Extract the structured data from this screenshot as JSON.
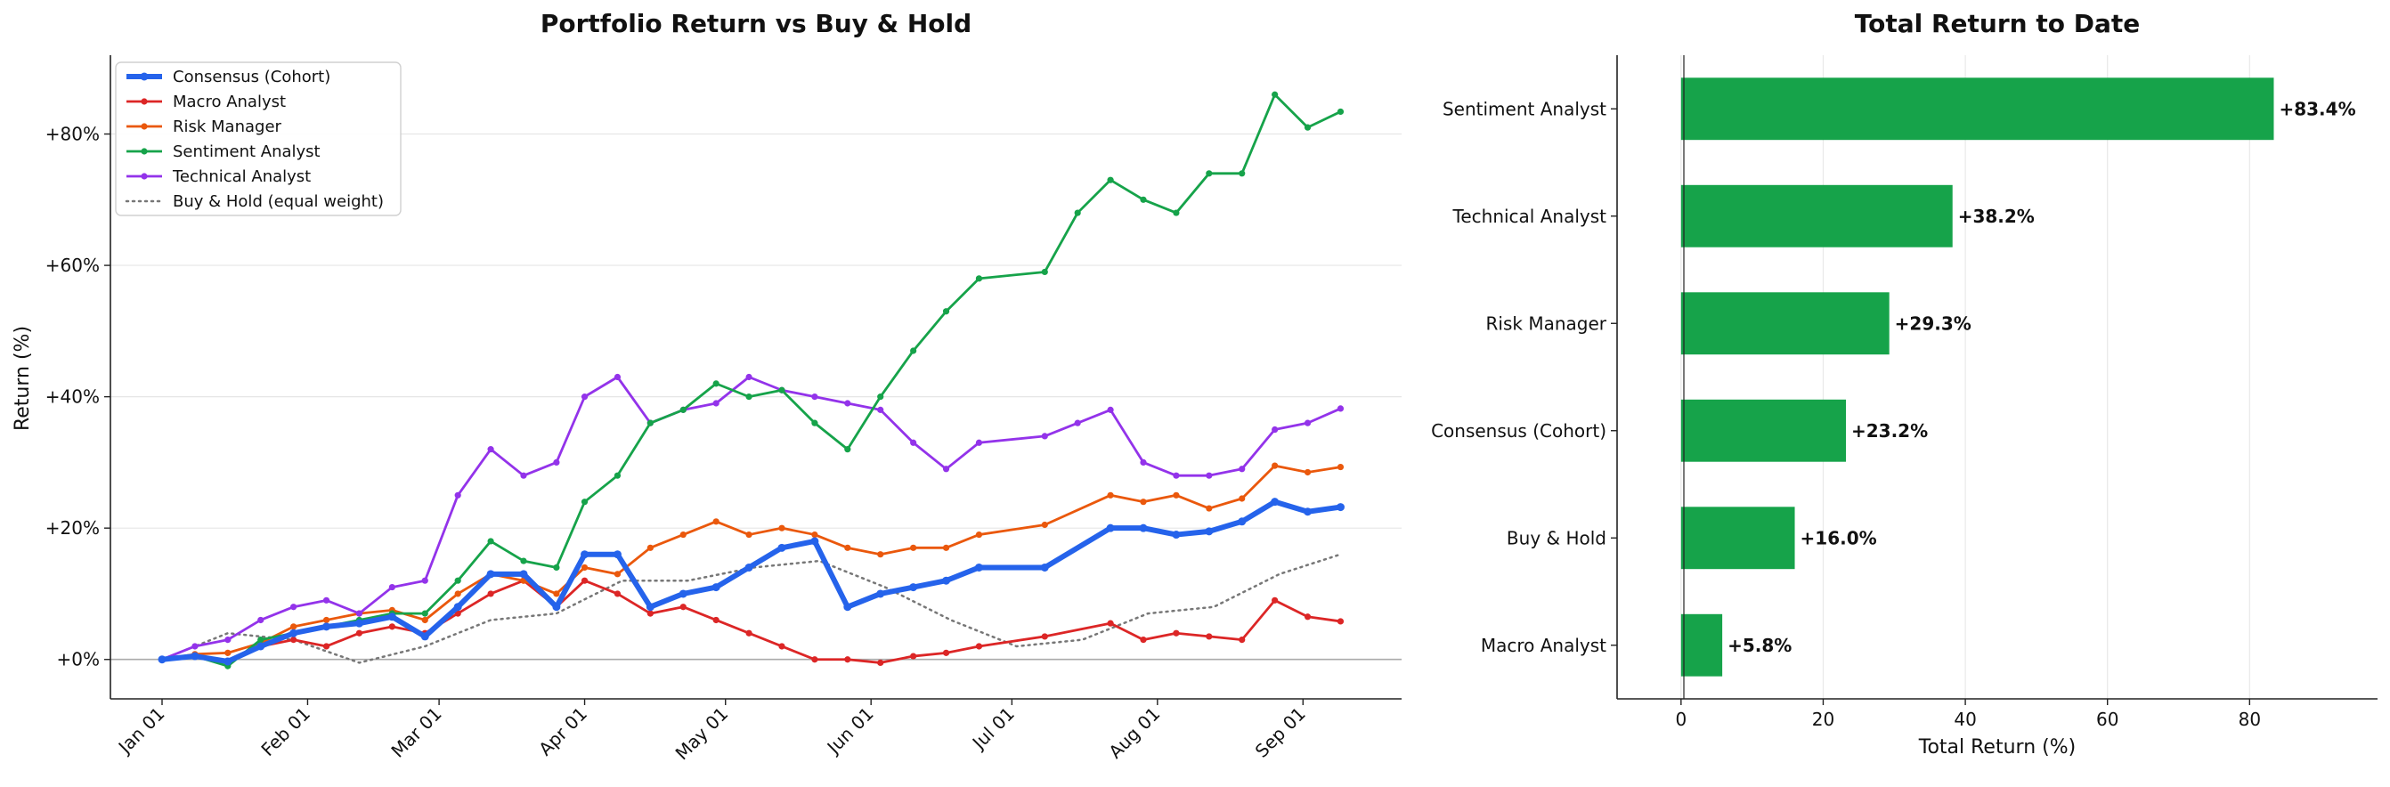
{
  "chart_data": [
    {
      "type": "line",
      "title": "Portfolio Return vs Buy & Hold",
      "xlabel": "",
      "ylabel": "Return (%)",
      "x_tick_labels": [
        "Jan 01",
        "Feb 01",
        "Mar 01",
        "Apr 01",
        "May 01",
        "Jun 01",
        "Jul 01",
        "Aug 01",
        "Sep 01"
      ],
      "x_ticks": [
        "2025-01-01",
        "2025-02-01",
        "2025-03-01",
        "2025-04-01",
        "2025-05-01",
        "2025-06-01",
        "2025-07-01",
        "2025-08-01",
        "2025-09-01"
      ],
      "xlim": [
        "2024-12-21",
        "2025-09-22"
      ],
      "y_tick_labels": [
        "+0%",
        "+20%",
        "+40%",
        "+60%",
        "+80%"
      ],
      "y_ticks": [
        0,
        20,
        40,
        60,
        80
      ],
      "ylim": [
        -6,
        92
      ],
      "grid": "horizontal",
      "legend": "upper-left",
      "series": [
        {
          "name": "Consensus (Cohort)",
          "color": "#2563eb",
          "style": "solid-bold",
          "points": [
            [
              "2025-01-01",
              0
            ],
            [
              "2025-01-08",
              0.5
            ],
            [
              "2025-01-15",
              -0.3
            ],
            [
              "2025-01-22",
              2
            ],
            [
              "2025-01-29",
              4
            ],
            [
              "2025-02-05",
              5
            ],
            [
              "2025-02-12",
              5.5
            ],
            [
              "2025-02-19",
              6.5
            ],
            [
              "2025-02-26",
              3.5
            ],
            [
              "2025-03-05",
              8
            ],
            [
              "2025-03-12",
              13
            ],
            [
              "2025-03-19",
              13
            ],
            [
              "2025-03-26",
              8
            ],
            [
              "2025-04-01",
              16
            ],
            [
              "2025-04-08",
              16
            ],
            [
              "2025-04-15",
              8
            ],
            [
              "2025-04-22",
              10
            ],
            [
              "2025-04-29",
              11
            ],
            [
              "2025-05-06",
              14
            ],
            [
              "2025-05-13",
              17
            ],
            [
              "2025-05-20",
              18
            ],
            [
              "2025-05-27",
              8
            ],
            [
              "2025-06-03",
              10
            ],
            [
              "2025-06-10",
              11
            ],
            [
              "2025-06-17",
              12
            ],
            [
              "2025-06-24",
              14
            ],
            [
              "2025-07-08",
              14
            ],
            [
              "2025-07-22",
              20
            ],
            [
              "2025-07-29",
              20
            ],
            [
              "2025-08-05",
              19
            ],
            [
              "2025-08-12",
              19.5
            ],
            [
              "2025-08-19",
              21
            ],
            [
              "2025-08-26",
              24
            ],
            [
              "2025-09-02",
              22.5
            ],
            [
              "2025-09-09",
              23.2
            ]
          ]
        },
        {
          "name": "Macro Analyst",
          "color": "#dc2626",
          "style": "solid",
          "points": [
            [
              "2025-01-01",
              0
            ],
            [
              "2025-01-08",
              0.5
            ],
            [
              "2025-01-15",
              -0.5
            ],
            [
              "2025-01-22",
              2
            ],
            [
              "2025-01-29",
              3
            ],
            [
              "2025-02-05",
              2
            ],
            [
              "2025-02-12",
              4
            ],
            [
              "2025-02-19",
              5
            ],
            [
              "2025-02-26",
              4
            ],
            [
              "2025-03-05",
              7
            ],
            [
              "2025-03-12",
              10
            ],
            [
              "2025-03-19",
              12
            ],
            [
              "2025-03-26",
              8
            ],
            [
              "2025-04-01",
              12
            ],
            [
              "2025-04-08",
              10
            ],
            [
              "2025-04-15",
              7
            ],
            [
              "2025-04-22",
              8
            ],
            [
              "2025-04-29",
              6
            ],
            [
              "2025-05-06",
              4
            ],
            [
              "2025-05-13",
              2
            ],
            [
              "2025-05-20",
              0
            ],
            [
              "2025-05-27",
              0
            ],
            [
              "2025-06-03",
              -0.5
            ],
            [
              "2025-06-10",
              0.5
            ],
            [
              "2025-06-17",
              1
            ],
            [
              "2025-06-24",
              2
            ],
            [
              "2025-07-08",
              3.5
            ],
            [
              "2025-07-22",
              5.5
            ],
            [
              "2025-07-29",
              3
            ],
            [
              "2025-08-05",
              4
            ],
            [
              "2025-08-12",
              3.5
            ],
            [
              "2025-08-19",
              3
            ],
            [
              "2025-08-26",
              9
            ],
            [
              "2025-09-02",
              6.5
            ],
            [
              "2025-09-09",
              5.8
            ]
          ]
        },
        {
          "name": "Risk Manager",
          "color": "#ea580c",
          "style": "solid",
          "points": [
            [
              "2025-01-01",
              0
            ],
            [
              "2025-01-08",
              0.8
            ],
            [
              "2025-01-15",
              1
            ],
            [
              "2025-01-22",
              2.5
            ],
            [
              "2025-01-29",
              5
            ],
            [
              "2025-02-05",
              6
            ],
            [
              "2025-02-12",
              7
            ],
            [
              "2025-02-19",
              7.5
            ],
            [
              "2025-02-26",
              6
            ],
            [
              "2025-03-05",
              10
            ],
            [
              "2025-03-12",
              13
            ],
            [
              "2025-03-19",
              12
            ],
            [
              "2025-03-26",
              10
            ],
            [
              "2025-04-01",
              14
            ],
            [
              "2025-04-08",
              13
            ],
            [
              "2025-04-15",
              17
            ],
            [
              "2025-04-22",
              19
            ],
            [
              "2025-04-29",
              21
            ],
            [
              "2025-05-06",
              19
            ],
            [
              "2025-05-13",
              20
            ],
            [
              "2025-05-20",
              19
            ],
            [
              "2025-05-27",
              17
            ],
            [
              "2025-06-03",
              16
            ],
            [
              "2025-06-10",
              17
            ],
            [
              "2025-06-17",
              17
            ],
            [
              "2025-06-24",
              19
            ],
            [
              "2025-07-08",
              20.5
            ],
            [
              "2025-07-22",
              25
            ],
            [
              "2025-07-29",
              24
            ],
            [
              "2025-08-05",
              25
            ],
            [
              "2025-08-12",
              23
            ],
            [
              "2025-08-19",
              24.5
            ],
            [
              "2025-08-26",
              29.5
            ],
            [
              "2025-09-02",
              28.5
            ],
            [
              "2025-09-09",
              29.3
            ]
          ]
        },
        {
          "name": "Sentiment Analyst",
          "color": "#16a34a",
          "style": "solid",
          "points": [
            [
              "2025-01-01",
              0
            ],
            [
              "2025-01-08",
              0.5
            ],
            [
              "2025-01-15",
              -1
            ],
            [
              "2025-01-22",
              3
            ],
            [
              "2025-01-29",
              4
            ],
            [
              "2025-02-05",
              5
            ],
            [
              "2025-02-12",
              6
            ],
            [
              "2025-02-19",
              7
            ],
            [
              "2025-02-26",
              7
            ],
            [
              "2025-03-05",
              12
            ],
            [
              "2025-03-12",
              18
            ],
            [
              "2025-03-19",
              15
            ],
            [
              "2025-03-26",
              14
            ],
            [
              "2025-04-01",
              24
            ],
            [
              "2025-04-08",
              28
            ],
            [
              "2025-04-15",
              36
            ],
            [
              "2025-04-22",
              38
            ],
            [
              "2025-04-29",
              42
            ],
            [
              "2025-05-06",
              40
            ],
            [
              "2025-05-13",
              41
            ],
            [
              "2025-05-20",
              36
            ],
            [
              "2025-05-27",
              32
            ],
            [
              "2025-06-03",
              40
            ],
            [
              "2025-06-10",
              47
            ],
            [
              "2025-06-17",
              53
            ],
            [
              "2025-06-24",
              58
            ],
            [
              "2025-07-08",
              59
            ],
            [
              "2025-07-15",
              68
            ],
            [
              "2025-07-22",
              73
            ],
            [
              "2025-07-29",
              70
            ],
            [
              "2025-08-05",
              68
            ],
            [
              "2025-08-12",
              74
            ],
            [
              "2025-08-19",
              74
            ],
            [
              "2025-08-26",
              86
            ],
            [
              "2025-09-02",
              81
            ],
            [
              "2025-09-09",
              83.4
            ]
          ]
        },
        {
          "name": "Technical Analyst",
          "color": "#9333ea",
          "style": "solid",
          "points": [
            [
              "2025-01-01",
              0
            ],
            [
              "2025-01-08",
              2
            ],
            [
              "2025-01-15",
              3
            ],
            [
              "2025-01-22",
              6
            ],
            [
              "2025-01-29",
              8
            ],
            [
              "2025-02-05",
              9
            ],
            [
              "2025-02-12",
              7
            ],
            [
              "2025-02-19",
              11
            ],
            [
              "2025-02-26",
              12
            ],
            [
              "2025-03-05",
              25
            ],
            [
              "2025-03-12",
              32
            ],
            [
              "2025-03-19",
              28
            ],
            [
              "2025-03-26",
              30
            ],
            [
              "2025-04-01",
              40
            ],
            [
              "2025-04-08",
              43
            ],
            [
              "2025-04-15",
              36
            ],
            [
              "2025-04-22",
              38
            ],
            [
              "2025-04-29",
              39
            ],
            [
              "2025-05-06",
              43
            ],
            [
              "2025-05-13",
              41
            ],
            [
              "2025-05-20",
              40
            ],
            [
              "2025-05-27",
              39
            ],
            [
              "2025-06-03",
              38
            ],
            [
              "2025-06-10",
              33
            ],
            [
              "2025-06-17",
              29
            ],
            [
              "2025-06-24",
              33
            ],
            [
              "2025-07-08",
              34
            ],
            [
              "2025-07-15",
              36
            ],
            [
              "2025-07-22",
              38
            ],
            [
              "2025-07-29",
              30
            ],
            [
              "2025-08-05",
              28
            ],
            [
              "2025-08-12",
              28
            ],
            [
              "2025-08-19",
              29
            ],
            [
              "2025-08-26",
              35
            ],
            [
              "2025-09-02",
              36
            ],
            [
              "2025-09-09",
              38.2
            ]
          ]
        },
        {
          "name": "Buy & Hold (equal weight)",
          "color": "#777777",
          "style": "dotted",
          "points": [
            [
              "2025-01-01",
              0
            ],
            [
              "2025-01-15",
              4
            ],
            [
              "2025-01-29",
              3
            ],
            [
              "2025-02-12",
              -0.5
            ],
            [
              "2025-02-26",
              2
            ],
            [
              "2025-03-12",
              6
            ],
            [
              "2025-03-26",
              7
            ],
            [
              "2025-04-09",
              12
            ],
            [
              "2025-04-23",
              12
            ],
            [
              "2025-05-07",
              14
            ],
            [
              "2025-05-21",
              15
            ],
            [
              "2025-06-04",
              11
            ],
            [
              "2025-06-18",
              6
            ],
            [
              "2025-07-02",
              2
            ],
            [
              "2025-07-16",
              3
            ],
            [
              "2025-07-30",
              7
            ],
            [
              "2025-08-13",
              8
            ],
            [
              "2025-08-27",
              13
            ],
            [
              "2025-09-09",
              16
            ]
          ]
        }
      ]
    },
    {
      "type": "bar",
      "orientation": "horizontal",
      "title": "Total Return to Date",
      "xlabel": "Total Return (%)",
      "ylabel": "",
      "categories": [
        "Sentiment Analyst",
        "Technical Analyst",
        "Risk Manager",
        "Consensus (Cohort)",
        "Buy & Hold",
        "Macro Analyst"
      ],
      "values": [
        83.4,
        38.2,
        29.3,
        23.2,
        16.0,
        5.8
      ],
      "value_labels": [
        "+83.4%",
        "+38.2%",
        "+29.3%",
        "+23.2%",
        "+16.0%",
        "+5.8%"
      ],
      "x_tick_labels": [
        "0",
        "20",
        "40",
        "60",
        "80"
      ],
      "x_ticks": [
        0,
        20,
        40,
        60,
        80
      ],
      "xlim": [
        -9,
        98
      ],
      "grid": "vertical",
      "bar_color": "#16a34a"
    }
  ]
}
